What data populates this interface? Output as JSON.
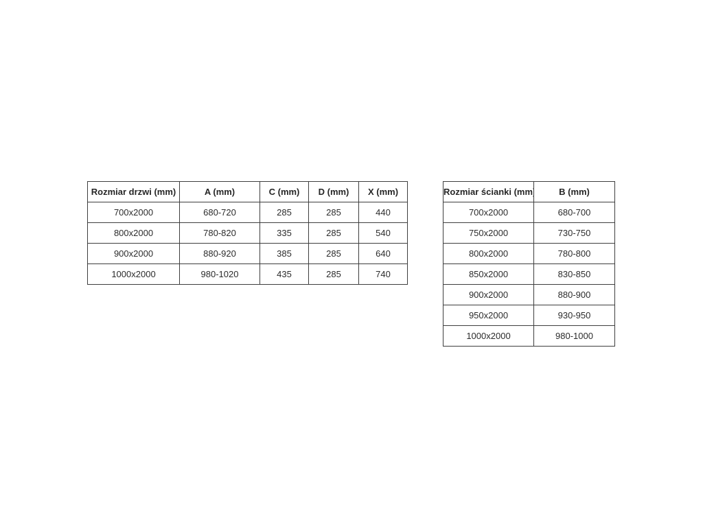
{
  "page": {
    "background_color": "#ffffff",
    "border_color": "#3d3d3d",
    "text_color": "#2b2b2b"
  },
  "tables": {
    "door": {
      "name": "door-size-table",
      "headers": [
        "Rozmiar drzwi (mm)",
        "A (mm)",
        "C (mm)",
        "D (mm)",
        "X (mm)"
      ],
      "rows": [
        [
          "700x2000",
          "680-720",
          "285",
          "285",
          "440"
        ],
        [
          "800x2000",
          "780-820",
          "335",
          "285",
          "540"
        ],
        [
          "900x2000",
          "880-920",
          "385",
          "285",
          "640"
        ],
        [
          "1000x2000",
          "980-1020",
          "435",
          "285",
          "740"
        ]
      ]
    },
    "wall": {
      "name": "wall-size-table",
      "headers": [
        "Rozmiar ścianki (mm)",
        "B (mm)"
      ],
      "rows": [
        [
          "700x2000",
          "680-700"
        ],
        [
          "750x2000",
          "730-750"
        ],
        [
          "800x2000",
          "780-800"
        ],
        [
          "850x2000",
          "830-850"
        ],
        [
          "900x2000",
          "880-900"
        ],
        [
          "950x2000",
          "930-950"
        ],
        [
          "1000x2000",
          "980-1000"
        ]
      ]
    }
  }
}
